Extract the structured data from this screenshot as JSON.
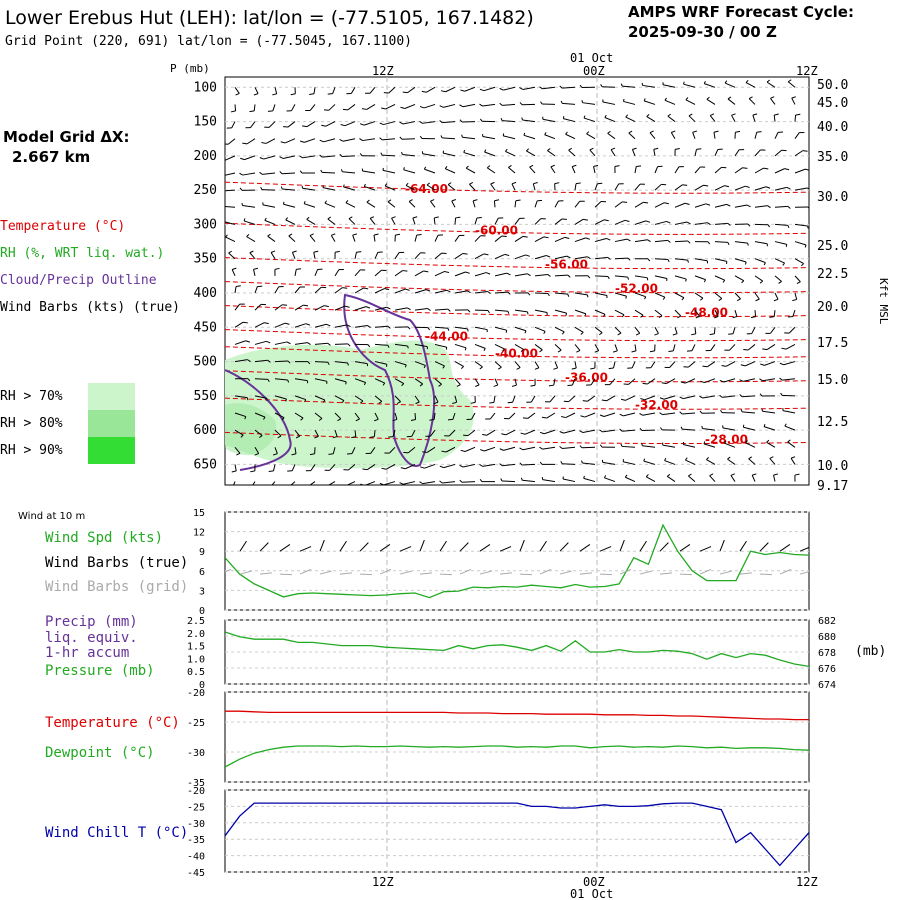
{
  "header": {
    "title": "Lower Erebus Hut (LEH):  lat/lon = (-77.5105, 167.1482)",
    "subtitle": "Grid Point (220, 691) lat/lon = (-77.5045, 167.1100)",
    "cycle_line1": "AMPS WRF Forecast Cycle:",
    "cycle_line2": "2025-09-30 / 00  Z"
  },
  "left_legend": {
    "grid_line1": "Model Grid ΔX:",
    "grid_line2": "2.667 km",
    "temperature": "Temperature (°C)",
    "rh": "RH (%, WRT liq. wat.)",
    "cloud": "Cloud/Precip Outline",
    "wind_barbs": "Wind Barbs (kts) (true)",
    "rh70": "RH > 70%",
    "rh80": "RH > 80%",
    "rh90": "RH > 90%"
  },
  "colors": {
    "temperature": "#dd0000",
    "rh": "#22aa22",
    "cloud": "#663399",
    "wind_gray": "#aaaaaa",
    "windchill": "#0000aa",
    "rh70": "#ccf5cc",
    "rh80": "#99e699",
    "rh90": "#33dd33"
  },
  "time_axis": {
    "labels": [
      "12Z",
      "00Z",
      "12Z"
    ],
    "date_label": "01 Oct"
  },
  "chart_data": [
    {
      "type": "line",
      "name": "profile",
      "ylabel_left": "P (mb)",
      "ylabel_right": "Kft MSL",
      "pressure_ticks": [
        100,
        150,
        200,
        250,
        300,
        350,
        400,
        450,
        500,
        550,
        600,
        650
      ],
      "height_ticks": [
        "50.0",
        "45.0",
        "40.0",
        "35.0",
        "30.0",
        "25.0",
        "22.5",
        "20.0",
        "17.5",
        "15.0",
        "12.5",
        "10.0",
        "9.17"
      ],
      "temperature_contours": [
        {
          "label": "-64.00",
          "p": 250
        },
        {
          "label": "-60.00",
          "p": 310
        },
        {
          "label": "-56.00",
          "p": 360
        },
        {
          "label": "-52.00",
          "p": 395
        },
        {
          "label": "-48.00",
          "p": 430
        },
        {
          "label": "-44.00",
          "p": 465
        },
        {
          "label": "-40.00",
          "p": 490
        },
        {
          "label": "-36.00",
          "p": 525
        },
        {
          "label": "-32.00",
          "p": 565
        },
        {
          "label": "-28.00",
          "p": 615
        }
      ]
    },
    {
      "type": "line",
      "name": "wind10m",
      "panel_label": "Wind at 10 m",
      "label_speed": "Wind Spd (kts)",
      "label_barbs_true": "Wind Barbs (true)",
      "label_barbs_grid": "Wind Barbs (grid)",
      "y_ticks": [
        0,
        3,
        6,
        9,
        12,
        15
      ],
      "ylim": [
        0,
        15
      ],
      "x_hours": [
        0,
        3,
        6,
        9,
        12,
        15,
        18,
        21,
        24,
        27,
        30,
        33,
        36,
        39,
        42,
        45,
        48,
        51,
        54,
        57,
        60,
        63,
        66,
        69,
        72,
        75,
        78,
        81,
        84,
        87,
        90,
        93,
        96,
        99,
        102,
        105,
        108,
        111,
        114,
        117,
        120
      ],
      "values": [
        8,
        5.5,
        4,
        3,
        2,
        2.5,
        2.6,
        2.5,
        2.4,
        2.3,
        2.2,
        2.3,
        2.5,
        2.6,
        1.9,
        2.8,
        2.9,
        3.5,
        3.4,
        3.6,
        3.5,
        3.8,
        3.6,
        3.4,
        3.9,
        3.5,
        3.6,
        4,
        8,
        7,
        13,
        9,
        6,
        4.5,
        4.5,
        4.5,
        9,
        8.5,
        8.8,
        8.5,
        8.4
      ]
    },
    {
      "type": "line",
      "name": "precip_pressure",
      "label_precip": "Precip (mm)",
      "label_liq": "liq. equiv.",
      "label_accum": "1-hr accum",
      "label_pressure": "Pressure (mb)",
      "right_unit": "(mb)",
      "precip_ticks": [
        "0",
        "0.5",
        "1.0",
        "1.5",
        "2.0",
        "2.5"
      ],
      "pressure_ticks": [
        674,
        676,
        678,
        680,
        682
      ],
      "x_hours": [
        0,
        3,
        6,
        9,
        12,
        15,
        18,
        21,
        24,
        27,
        30,
        33,
        36,
        39,
        42,
        45,
        48,
        51,
        54,
        57,
        60,
        63,
        66,
        69,
        72,
        75,
        78,
        81,
        84,
        87,
        90,
        93,
        96,
        99,
        102,
        105,
        108,
        111,
        114,
        117,
        120
      ],
      "values": [
        680.5,
        679.9,
        679.6,
        679.6,
        679.6,
        679.2,
        679.2,
        679.0,
        678.8,
        678.8,
        678.8,
        678.6,
        678.5,
        678.4,
        678.3,
        678.2,
        678.8,
        678.4,
        678.8,
        678.9,
        678.6,
        678.2,
        678.8,
        678.1,
        679.4,
        678.0,
        678.0,
        678.3,
        678.0,
        678.0,
        678.2,
        678.1,
        677.8,
        677.1,
        677.8,
        677.3,
        677.8,
        677.6,
        677.0,
        676.5,
        676.2
      ]
    },
    {
      "type": "line",
      "name": "temp_dew",
      "label_temp": "Temperature (°C)",
      "label_dew": "Dewpoint (°C)",
      "y_ticks": [
        -20,
        -25,
        -30,
        -35
      ],
      "ylim": [
        -35,
        -20
      ],
      "x_hours": [
        0,
        3,
        6,
        9,
        12,
        15,
        18,
        21,
        24,
        27,
        30,
        33,
        36,
        39,
        42,
        45,
        48,
        51,
        54,
        57,
        60,
        63,
        66,
        69,
        72,
        75,
        78,
        81,
        84,
        87,
        90,
        93,
        96,
        99,
        102,
        105,
        108,
        111,
        114,
        117,
        120
      ],
      "temperature": [
        -23.2,
        -23.2,
        -23.3,
        -23.4,
        -23.4,
        -23.4,
        -23.4,
        -23.4,
        -23.4,
        -23.4,
        -23.4,
        -23.4,
        -23.4,
        -23.4,
        -23.4,
        -23.4,
        -23.5,
        -23.5,
        -23.5,
        -23.6,
        -23.6,
        -23.6,
        -23.7,
        -23.7,
        -23.7,
        -23.7,
        -23.8,
        -23.8,
        -23.8,
        -23.9,
        -23.9,
        -24.0,
        -24.0,
        -24.1,
        -24.2,
        -24.3,
        -24.4,
        -24.5,
        -24.5,
        -24.6,
        -24.6
      ],
      "dewpoint": [
        -32.5,
        -31.2,
        -30.2,
        -29.6,
        -29.2,
        -29.0,
        -29.0,
        -29.0,
        -29.1,
        -29.0,
        -29.1,
        -29.1,
        -29.0,
        -29.1,
        -29.2,
        -29.1,
        -29.2,
        -29.1,
        -29.0,
        -29.0,
        -29.2,
        -29.1,
        -29.2,
        -29.0,
        -29.0,
        -29.3,
        -29.1,
        -29.0,
        -29.2,
        -29.1,
        -29.2,
        -29.0,
        -29.1,
        -29.3,
        -29.2,
        -29.4,
        -29.3,
        -29.3,
        -29.4,
        -29.6,
        -29.7
      ]
    },
    {
      "type": "line",
      "name": "windchill",
      "label": "Wind Chill T (°C)",
      "y_ticks": [
        -20,
        -25,
        -30,
        -35,
        -40,
        -45
      ],
      "ylim": [
        -45,
        -20
      ],
      "x_hours": [
        0,
        3,
        6,
        9,
        12,
        15,
        18,
        21,
        24,
        27,
        30,
        33,
        36,
        39,
        42,
        45,
        48,
        51,
        54,
        57,
        60,
        63,
        66,
        69,
        72,
        75,
        78,
        81,
        84,
        87,
        90,
        93,
        96,
        99,
        102,
        105,
        108,
        111,
        114,
        117,
        120
      ],
      "values": [
        -34,
        -28,
        -24,
        -24,
        -24,
        -24,
        -24,
        -24,
        -24,
        -24,
        -24,
        -24,
        -24,
        -24,
        -24,
        -24,
        -24,
        -24,
        -24,
        -24,
        -24,
        -25,
        -25,
        -25.5,
        -25.5,
        -25,
        -24.5,
        -25,
        -25,
        -24.8,
        -24.2,
        -24,
        -24,
        -25,
        -26,
        -36,
        -33,
        -38,
        -43,
        -38,
        -33
      ]
    }
  ]
}
